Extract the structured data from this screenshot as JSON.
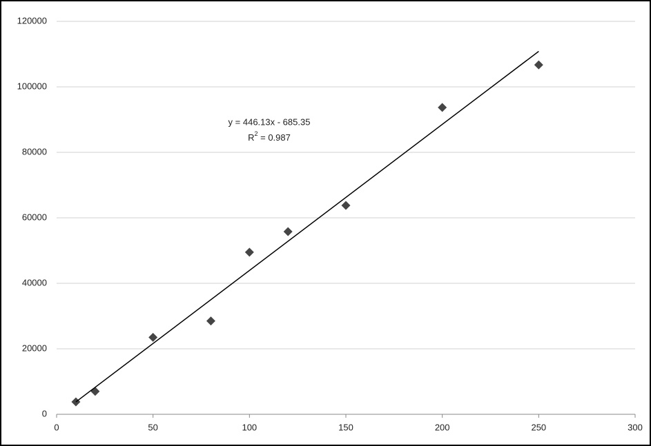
{
  "chart_data": {
    "type": "scatter",
    "x": [
      10,
      20,
      50,
      80,
      100,
      120,
      150,
      200,
      250
    ],
    "values": [
      3800,
      7000,
      23500,
      28500,
      49500,
      55800,
      63800,
      93700,
      106700
    ],
    "color": "#454545",
    "xlim": [
      0,
      300
    ],
    "xticks": [
      0,
      50,
      100,
      150,
      200,
      250,
      300
    ],
    "ylim": [
      0,
      120000
    ],
    "yticks": [
      0,
      20000,
      40000,
      60000,
      80000,
      100000,
      120000
    ],
    "grid": true,
    "trendline": {
      "x": [
        10,
        250
      ],
      "y": [
        3775.95,
        110847.15
      ],
      "color": "#000000",
      "equation": "y = 446.13x - 685.35",
      "r_squared": {
        "base": "R",
        "sup": "2",
        "rest": " = 0.987"
      }
    }
  }
}
